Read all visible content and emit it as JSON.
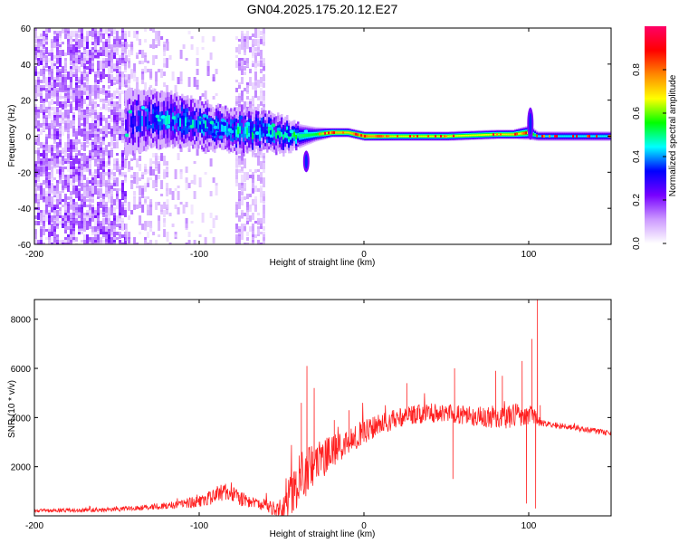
{
  "title": "GN04.2025.175.20.12.E27",
  "chart_data": [
    {
      "type": "heatmap",
      "xlabel": "Height of straight line (km)",
      "ylabel": "Frequency (Hz)",
      "xlim": [
        -200,
        150
      ],
      "ylim": [
        -60,
        60
      ],
      "x_ticks": [
        -200,
        -100,
        0,
        100
      ],
      "x_tick_labels": [
        "-200",
        "-100",
        "0",
        "100"
      ],
      "y_ticks": [
        -60,
        -40,
        -20,
        0,
        20,
        40,
        60
      ],
      "y_tick_labels": [
        "-60",
        "-40",
        "-20",
        "0",
        "20",
        "40",
        "60"
      ],
      "colorbar": {
        "label": "Normalized spectral amplitude",
        "range": [
          0,
          1
        ],
        "ticks": [
          0.0,
          0.2,
          0.4,
          0.6,
          0.8
        ],
        "tick_labels": [
          "0.0",
          "0.2",
          "0.4",
          "0.6",
          "0.8"
        ],
        "colormap": [
          "#ffffff",
          "#cc99ff",
          "#7700ff",
          "#0000ff",
          "#00ffff",
          "#00ff00",
          "#ffff00",
          "#ff8800",
          "#ff0000",
          "#ff0066"
        ]
      },
      "ridge": {
        "x": [
          -145,
          -130,
          -115,
          -100,
          -90,
          -80,
          -70,
          -60,
          -50,
          -40,
          -30,
          -20,
          -10,
          0,
          20,
          50,
          80,
          90,
          100,
          105,
          120,
          150
        ],
        "center_hz": [
          8,
          10,
          9,
          7,
          5,
          4,
          2,
          3,
          1,
          0,
          1,
          2,
          2,
          0,
          0,
          0,
          1,
          1,
          2,
          0,
          0,
          0
        ],
        "halfwidth_hz": [
          14,
          12,
          11,
          10,
          9,
          9,
          9,
          8,
          8,
          5,
          3,
          2,
          2,
          2,
          2,
          2,
          2,
          2,
          3,
          2,
          2,
          2
        ],
        "peak_amplitude": [
          0.25,
          0.35,
          0.4,
          0.4,
          0.4,
          0.45,
          0.45,
          0.45,
          0.45,
          0.55,
          0.6,
          0.85,
          0.8,
          0.9,
          0.75,
          0.75,
          0.75,
          0.8,
          0.75,
          0.5,
          0.5,
          0.5
        ]
      },
      "noise_regions": [
        {
          "x_range": [
            -200,
            -145
          ],
          "density": 0.55
        },
        {
          "x_range": [
            -145,
            -120
          ],
          "density": 0.22
        },
        {
          "x_range": [
            -120,
            -90
          ],
          "density": 0.08
        },
        {
          "x_range": [
            -78,
            -60
          ],
          "density": 0.35
        }
      ],
      "features": [
        {
          "x": -35,
          "freq_hz": -14,
          "freq_halfspan_hz": 6
        },
        {
          "x": 101,
          "freq_hz": 7,
          "freq_halfspan_hz": 9
        }
      ]
    },
    {
      "type": "line",
      "xlabel": "Height of straight line (km)",
      "ylabel": "SNR (10 * v/v)",
      "xlim": [
        -200,
        150
      ],
      "ylim": [
        0,
        8800
      ],
      "x_ticks": [
        -200,
        -100,
        0,
        100
      ],
      "x_tick_labels": [
        "-200",
        "-100",
        "0",
        "100"
      ],
      "y_ticks": [
        2000,
        4000,
        6000,
        8000
      ],
      "y_tick_labels": [
        "2000",
        "4000",
        "6000",
        "8000"
      ],
      "series": [
        {
          "color": "#ff2020",
          "envelope": {
            "x": [
              -200,
              -180,
              -160,
              -140,
              -120,
              -100,
              -90,
              -85,
              -80,
              -75,
              -70,
              -65,
              -60,
              -55,
              -50,
              -45,
              -40,
              -35,
              -30,
              -25,
              -20,
              -15,
              -10,
              -5,
              0,
              10,
              20,
              30,
              40,
              50,
              60,
              70,
              80,
              90,
              100,
              104,
              106,
              110,
              120,
              130,
              140,
              150
            ],
            "y": [
              200,
              220,
              250,
              300,
              400,
              600,
              800,
              1000,
              900,
              700,
              600,
              500,
              400,
              300,
              300,
              800,
              1400,
              1800,
              2100,
              2300,
              2600,
              2800,
              3000,
              3200,
              3400,
              3700,
              4000,
              4100,
              4200,
              4150,
              4100,
              4050,
              4000,
              4050,
              4150,
              4000,
              3800,
              3750,
              3650,
              3550,
              3450,
              3350
            ],
            "noise": [
              80,
              80,
              90,
              100,
              150,
              250,
              300,
              350,
              300,
              300,
              250,
              250,
              250,
              300,
              400,
              900,
              1000,
              1100,
              900,
              800,
              700,
              600,
              500,
              500,
              500,
              450,
              400,
              400,
              400,
              400,
              400,
              400,
              450,
              500,
              500,
              300,
              150,
              120,
              120,
              120,
              120,
              120
            ]
          },
          "spikes": [
            {
              "x": -34.6,
              "y": 6100
            },
            {
              "x": -30.2,
              "y": 5200
            },
            {
              "x": -38,
              "y": 4600
            },
            {
              "x": -18,
              "y": 3900
            },
            {
              "x": -9,
              "y": 4300
            },
            {
              "x": 26,
              "y": 5400
            },
            {
              "x": 54,
              "y": 1500
            },
            {
              "x": 55,
              "y": 6000
            },
            {
              "x": 80,
              "y": 5900
            },
            {
              "x": 84,
              "y": 5700
            },
            {
              "x": 96,
              "y": 6300
            },
            {
              "x": 98.6,
              "y": 500
            },
            {
              "x": 102,
              "y": 7200
            },
            {
              "x": 104.2,
              "y": 300
            },
            {
              "x": 105.3,
              "y": 8850
            },
            {
              "x": 107,
              "y": 4500
            }
          ]
        }
      ]
    }
  ]
}
